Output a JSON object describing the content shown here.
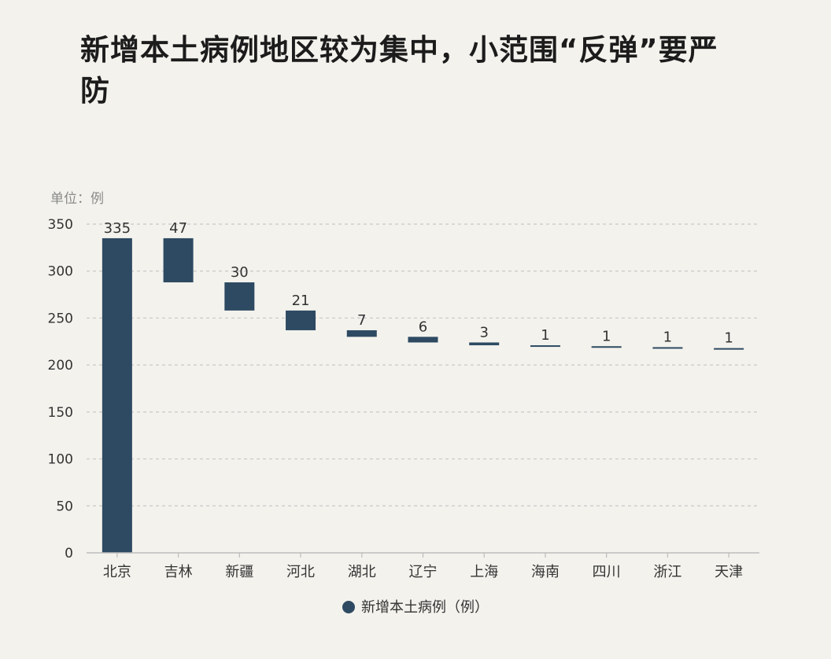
{
  "title": "新增本土病例地区较为集中，小范围“反弹”要严防",
  "unit_label": "单位：例",
  "colors": {
    "bar": "#2e4a62",
    "grid": "#c8c8c8",
    "axis_text": "#333333"
  },
  "chart_data": {
    "type": "bar",
    "subtype": "waterfall",
    "categories": [
      "北京",
      "吉林",
      "新疆",
      "河北",
      "湖北",
      "辽宁",
      "上海",
      "海南",
      "四川",
      "浙江",
      "天津"
    ],
    "values": [
      335,
      47,
      30,
      21,
      7,
      6,
      3,
      1,
      1,
      1,
      1
    ],
    "value_labels": [
      "335",
      "47",
      "30",
      "21",
      "7",
      "6",
      "3",
      "1",
      "1",
      "1",
      "1"
    ],
    "series": [
      {
        "name": "新增本土病例（例）",
        "values": [
          335,
          47,
          30,
          21,
          7,
          6,
          3,
          1,
          1,
          1,
          1
        ]
      }
    ],
    "y_ticks": [
      "0",
      "50",
      "100",
      "150",
      "200",
      "250",
      "300",
      "350"
    ],
    "ylim": [
      0,
      350
    ],
    "grid": true,
    "legend_position": "bottom-center"
  }
}
